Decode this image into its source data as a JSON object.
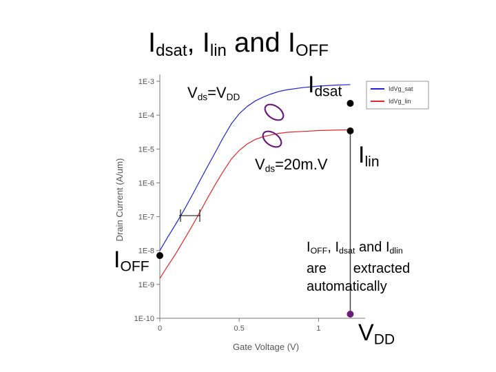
{
  "slide": {
    "title": {
      "I1": "I",
      "sub1": "dsat",
      "sep": ", ",
      "I2": "I",
      "sub2": "lin",
      "mid": " and ",
      "I3": "I",
      "sub3": "OFF"
    },
    "labels": {
      "vds_vdd": {
        "V": "V",
        "ds": "ds",
        "eq": "=V",
        "dd": "DD"
      },
      "idsat": {
        "I": "I",
        "sub": "dsat"
      },
      "vds_20mv": {
        "V": "V",
        "ds": "ds",
        "val": "=20m.V"
      },
      "ilin": {
        "I": "I",
        "sub": "lin"
      },
      "ioff": {
        "I": "I",
        "sub": "OFF"
      },
      "vdd": {
        "V": "V",
        "sub": "DD"
      },
      "note": {
        "I1": "I",
        "s1": "OFF",
        "c1": ", ",
        "I2": "I",
        "s2": "dsat",
        "c2": " and ",
        "I3": "I",
        "s3": "dlin",
        "line2": "are       extracted",
        "line3": "automatically"
      }
    },
    "colors": {
      "sat": "#1f1fd8",
      "lin": "#e02626",
      "marker": "#000000",
      "vdd_marker": "#6a1b7a",
      "ellipse": "#6a1b7a"
    }
  },
  "chart_data": {
    "type": "line",
    "xlabel": "Gate Voltage (V)",
    "ylabel": "Drain Current (A/um)",
    "xlim": [
      0,
      1.25
    ],
    "ylim_log10": [
      -10,
      -3
    ],
    "y_scale": "log",
    "x_ticks": [
      0,
      0.5,
      1
    ],
    "x_tick_labels": [
      "0",
      "0.5",
      "1"
    ],
    "y_tick_exponents": [
      -3,
      -4,
      -5,
      -6,
      -7,
      -8,
      -9,
      -10
    ],
    "y_tick_labels": [
      "1E-3",
      "1E-4",
      "1E-5",
      "1E-6",
      "1E-7",
      "1E-8",
      "1E-9",
      "1E-10"
    ],
    "legend": {
      "position": "top-right",
      "entries": [
        "IdVg_sat",
        "IdVg_lin"
      ]
    },
    "series": [
      {
        "name": "IdVg_sat",
        "x": [
          0,
          0.05,
          0.1,
          0.15,
          0.2,
          0.25,
          0.3,
          0.35,
          0.4,
          0.45,
          0.5,
          0.55,
          0.6,
          0.65,
          0.7,
          0.75,
          0.8,
          0.9,
          1.0,
          1.1,
          1.2
        ],
        "y": [
          1e-08,
          2.5e-08,
          6e-08,
          1.5e-07,
          4e-07,
          1.1e-06,
          3e-06,
          8e-06,
          2.2e-05,
          5.5e-05,
          0.00011,
          0.00018,
          0.00026,
          0.00034,
          0.00042,
          0.0005,
          0.00056,
          0.00065,
          0.00072,
          0.00077,
          0.0008
        ]
      },
      {
        "name": "IdVg_lin",
        "x": [
          0,
          0.05,
          0.1,
          0.15,
          0.2,
          0.25,
          0.3,
          0.35,
          0.4,
          0.45,
          0.5,
          0.55,
          0.6,
          0.65,
          0.7,
          0.75,
          0.8,
          0.9,
          1.0,
          1.1,
          1.2
        ],
        "y": [
          1.5e-09,
          3.5e-09,
          8e-09,
          2e-08,
          5e-08,
          1.3e-07,
          3.5e-07,
          9e-07,
          2.2e-06,
          5e-06,
          9e-06,
          1.4e-05,
          1.9e-05,
          2.3e-05,
          2.6e-05,
          2.9e-05,
          3.1e-05,
          3.3e-05,
          3.5e-05,
          3.6e-05,
          3.7e-05
        ]
      }
    ]
  }
}
